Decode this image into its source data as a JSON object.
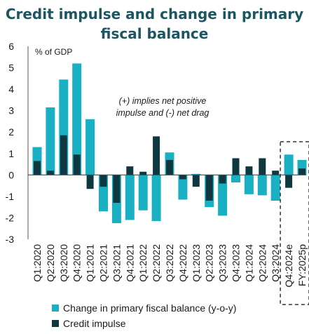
{
  "chart_data": {
    "type": "bar",
    "title_line1": "Credit impulse and change in primary",
    "title_line2": "fiscal balance",
    "unit_label": "% of GDP",
    "annotation_line1": "(+) implies net positive",
    "annotation_line2": "impulse and (-) net drag",
    "ylim": [
      -3,
      6
    ],
    "yticks": [
      "6",
      "5",
      "4",
      "3",
      "2",
      "1",
      "0",
      "-1",
      "-2",
      "-3"
    ],
    "categories": [
      "Q1:2020",
      "Q2:2020",
      "Q3:2020",
      "Q4:2020",
      "Q1:2021",
      "Q2:2021",
      "Q3:2021",
      "Q4:2021",
      "Q1:2022",
      "Q2:2022",
      "Q3:2022",
      "Q4:2022",
      "Q1:2023",
      "Q2:2023",
      "Q3:2023",
      "Q4:2023",
      "Q1:2024",
      "Q2:2024",
      "Q3:2024",
      "Q4:2024e",
      "FY:2025p"
    ],
    "series": [
      {
        "name": "Change in primary fiscal balance (y-o-y)",
        "color": "#1ab0c4",
        "values": [
          1.3,
          3.15,
          4.45,
          5.2,
          2.6,
          -1.7,
          -2.25,
          -2.1,
          -1.65,
          -2.15,
          1.05,
          -1.15,
          0.05,
          -1.5,
          -1.9,
          -0.35,
          -0.9,
          -0.95,
          -1.2,
          0.95,
          0.7
        ]
      },
      {
        "name": "Credit impulse",
        "color": "#0f3740",
        "values": [
          0.65,
          0.2,
          1.85,
          0.95,
          -0.65,
          -0.55,
          -1.3,
          0.4,
          0.15,
          1.8,
          0.7,
          -0.2,
          -0.55,
          -1.2,
          -0.4,
          0.78,
          0.4,
          0.78,
          0.2,
          -0.6,
          0.3
        ]
      }
    ],
    "highlight_categories": [
      "Q4:2024e",
      "FY:2025p"
    ]
  }
}
